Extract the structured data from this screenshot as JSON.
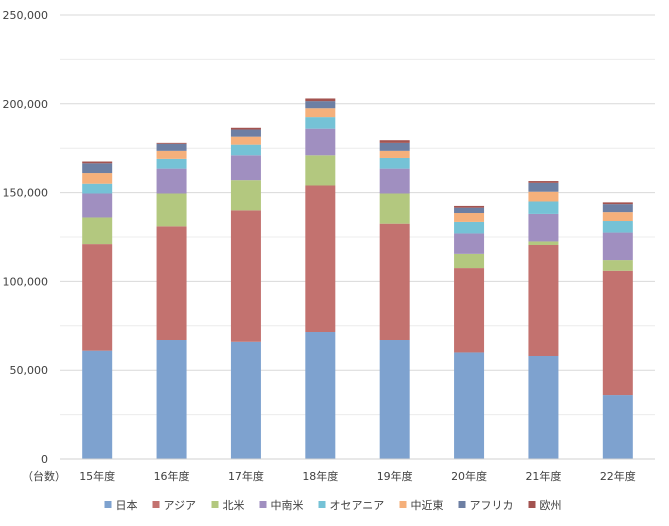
{
  "chart_data": {
    "type": "bar",
    "stacked": true,
    "categories": [
      "15年度",
      "16年度",
      "17年度",
      "18年度",
      "19年度",
      "20年度",
      "21年度",
      "22年度"
    ],
    "y_unit_label": "（台数）",
    "ylim": [
      0,
      250000
    ],
    "y_ticks": [
      0,
      50000,
      100000,
      150000,
      200000,
      250000
    ],
    "y_tick_labels": [
      "0",
      "50,000",
      "100,000",
      "150,000",
      "200,000",
      "250,000"
    ],
    "grid": true,
    "legend_position": "bottom",
    "series": [
      {
        "name": "日本",
        "color": "#7ea2cf",
        "values": [
          61000,
          67000,
          66000,
          71500,
          67000,
          60000,
          58000,
          36000
        ]
      },
      {
        "name": "アジア",
        "color": "#c3726f",
        "values": [
          60000,
          64000,
          74000,
          82500,
          65500,
          47500,
          62500,
          70000
        ]
      },
      {
        "name": "北米",
        "color": "#b3c87f",
        "values": [
          15000,
          18500,
          17000,
          17000,
          17000,
          8000,
          2000,
          6000
        ]
      },
      {
        "name": "中南米",
        "color": "#a08fc0",
        "values": [
          13500,
          14000,
          14000,
          15000,
          14000,
          11500,
          15500,
          15500
        ]
      },
      {
        "name": "オセアニア",
        "color": "#75c2d6",
        "values": [
          5500,
          5500,
          6000,
          6500,
          6000,
          6500,
          7000,
          6500
        ]
      },
      {
        "name": "中近東",
        "color": "#f5b07b",
        "values": [
          6000,
          4500,
          4500,
          5000,
          4000,
          5000,
          5500,
          5000
        ]
      },
      {
        "name": "アフリカ",
        "color": "#6d7fa3",
        "values": [
          5500,
          4000,
          4000,
          4000,
          4500,
          3000,
          5000,
          4500
        ]
      },
      {
        "name": "欧州",
        "color": "#a35350",
        "values": [
          1000,
          500,
          1000,
          1500,
          1500,
          1000,
          1000,
          1000
        ]
      }
    ]
  }
}
